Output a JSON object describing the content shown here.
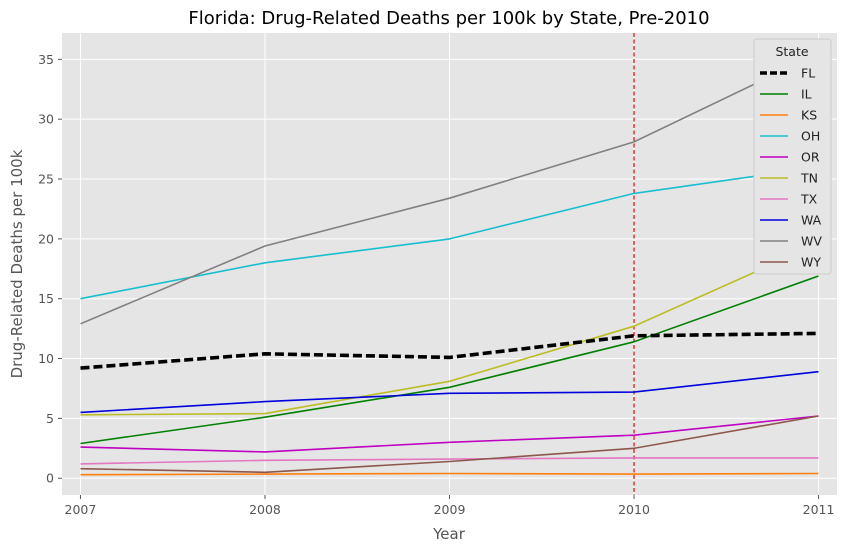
{
  "chart_data": {
    "type": "line",
    "title": "Florida: Drug-Related Deaths per 100k by State, Pre-2010",
    "xlabel": "Year",
    "ylabel": "Drug-Related Deaths per 100k",
    "x": [
      2007,
      2008,
      2009,
      2010,
      2011
    ],
    "xlim": [
      2006.9,
      2011.1
    ],
    "ylim": [
      -1.4,
      37.2
    ],
    "yticks": [
      0,
      5,
      10,
      15,
      20,
      25,
      30,
      35
    ],
    "grid": true,
    "legend": {
      "title": "State",
      "position": "top-right"
    },
    "reference_line": {
      "x": 2010,
      "color": "#e41a1c",
      "style": "dashed"
    },
    "series": [
      {
        "name": "FL",
        "color": "#000000",
        "dashed": true,
        "bold": true,
        "values": [
          9.2,
          10.4,
          10.1,
          11.9,
          12.1
        ]
      },
      {
        "name": "IL",
        "color": "#008000",
        "values": [
          2.9,
          5.1,
          7.6,
          11.4,
          16.9
        ]
      },
      {
        "name": "KS",
        "color": "#ff7f0e",
        "values": [
          0.3,
          0.35,
          0.4,
          0.35,
          0.4
        ]
      },
      {
        "name": "OH",
        "color": "#17becf",
        "values": [
          15.0,
          18.0,
          20.0,
          23.8,
          26.0
        ]
      },
      {
        "name": "OR",
        "color": "#c000c0",
        "values": [
          2.6,
          2.2,
          3.0,
          3.6,
          5.2
        ]
      },
      {
        "name": "TN",
        "color": "#bcbd22",
        "values": [
          5.3,
          5.4,
          8.1,
          12.7,
          19.6
        ]
      },
      {
        "name": "TX",
        "color": "#e377c2",
        "values": [
          1.2,
          1.5,
          1.6,
          1.7,
          1.7
        ]
      },
      {
        "name": "WA",
        "color": "#0000dd",
        "values": [
          5.5,
          6.4,
          7.1,
          7.2,
          8.9
        ]
      },
      {
        "name": "WV",
        "color": "#808080",
        "values": [
          12.9,
          19.4,
          23.4,
          28.1,
          35.5
        ]
      },
      {
        "name": "WY",
        "color": "#8c564b",
        "values": [
          0.8,
          0.5,
          1.4,
          2.5,
          5.2
        ]
      }
    ]
  }
}
